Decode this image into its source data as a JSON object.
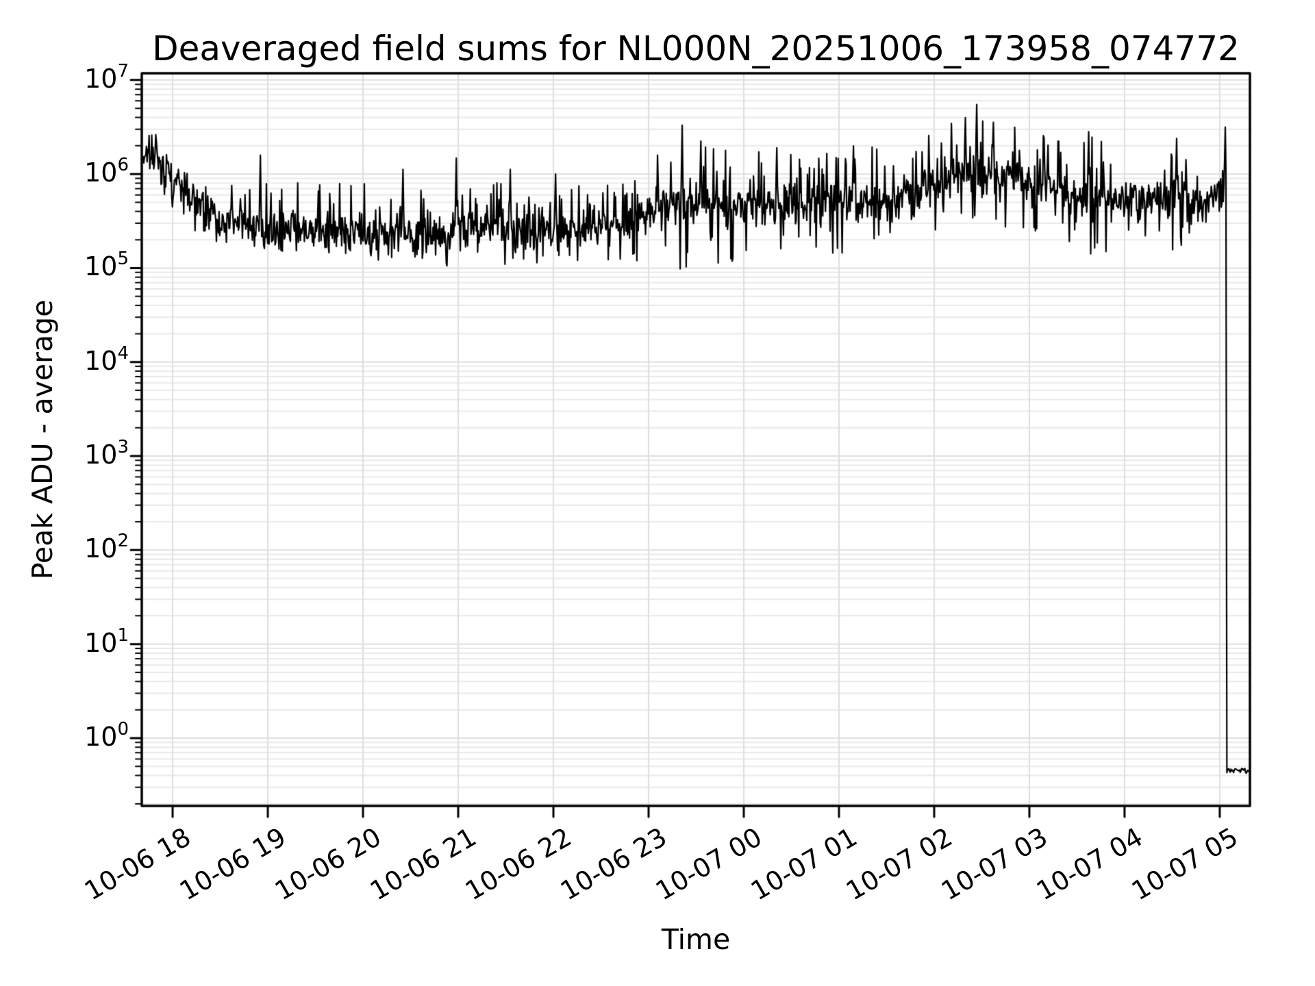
{
  "figure": {
    "background": "#ffffff"
  },
  "chart_data": {
    "type": "line",
    "title": "Deaveraged field sums for NL000N_20251006_173958_074772",
    "xlabel": "Time",
    "ylabel": "Peak ADU - average",
    "grid": "both-major-and-minor",
    "legend": "none",
    "y_scale": "log",
    "line_color": "#000000",
    "grid_major_color": "#dedede",
    "grid_minor_color": "#e9e9e9",
    "axis_color": "#000000",
    "xlim_hours": [
      17.676,
      29.317
    ],
    "ylim": [
      0.19,
      11800000
    ],
    "x_ticks": [
      {
        "label": "10-06 18",
        "hour": 18
      },
      {
        "label": "10-06 19",
        "hour": 19
      },
      {
        "label": "10-06 20",
        "hour": 20
      },
      {
        "label": "10-06 21",
        "hour": 21
      },
      {
        "label": "10-06 22",
        "hour": 22
      },
      {
        "label": "10-06 23",
        "hour": 23
      },
      {
        "label": "10-07 00",
        "hour": 24
      },
      {
        "label": "10-07 01",
        "hour": 25
      },
      {
        "label": "10-07 02",
        "hour": 26
      },
      {
        "label": "10-07 03",
        "hour": 27
      },
      {
        "label": "10-07 04",
        "hour": 28
      },
      {
        "label": "10-07 05",
        "hour": 29
      }
    ],
    "y_ticks": [
      {
        "base": "10",
        "exp": "7"
      },
      {
        "base": "10",
        "exp": "6"
      },
      {
        "base": "10",
        "exp": "5"
      },
      {
        "base": "10",
        "exp": "4"
      },
      {
        "base": "10",
        "exp": "3"
      },
      {
        "base": "10",
        "exp": "2"
      },
      {
        "base": "10",
        "exp": "1"
      },
      {
        "base": "10",
        "exp": "0"
      }
    ],
    "series": {
      "name": "deaveraged field sum",
      "unit": "ADU",
      "start_value": 1700000,
      "baseline_value": 270000,
      "peak_value": 5500000,
      "end_flat_value": 0.45,
      "envelope_log10": [
        [
          17.676,
          6.05,
          6.22,
          6.36
        ],
        [
          17.83,
          6.0,
          6.2,
          6.38
        ],
        [
          17.95,
          5.75,
          5.98,
          6.18
        ],
        [
          18.15,
          5.5,
          5.75,
          6.02
        ],
        [
          18.45,
          5.28,
          5.52,
          5.86
        ],
        [
          18.8,
          5.14,
          5.44,
          5.92
        ],
        [
          19.6,
          5.08,
          5.41,
          5.9
        ],
        [
          20.6,
          5.02,
          5.4,
          5.9
        ],
        [
          21.6,
          5.02,
          5.41,
          5.92
        ],
        [
          22.4,
          5.08,
          5.44,
          5.9
        ],
        [
          22.85,
          5.05,
          5.53,
          6.12
        ],
        [
          23.2,
          4.96,
          5.66,
          6.38
        ],
        [
          23.7,
          5.05,
          5.68,
          6.28
        ],
        [
          24.3,
          5.12,
          5.66,
          6.26
        ],
        [
          25.0,
          5.15,
          5.7,
          6.3
        ],
        [
          25.6,
          5.22,
          5.74,
          6.28
        ],
        [
          26.0,
          5.35,
          5.88,
          6.45
        ],
        [
          26.3,
          5.45,
          6.02,
          6.62
        ],
        [
          26.6,
          5.45,
          6.04,
          6.58
        ],
        [
          26.95,
          5.32,
          5.95,
          6.48
        ],
        [
          27.35,
          5.15,
          5.8,
          6.4
        ],
        [
          27.85,
          5.08,
          5.74,
          6.4
        ],
        [
          28.45,
          5.1,
          5.72,
          6.3
        ],
        [
          28.95,
          5.15,
          5.75,
          6.32
        ],
        [
          29.068,
          5.2,
          5.8,
          6.4
        ]
      ],
      "spikes_log10": [
        [
          18.92,
          6.2
        ],
        [
          20.42,
          6.05
        ],
        [
          20.98,
          6.17
        ],
        [
          21.55,
          6.05
        ],
        [
          22.02,
          6.0
        ],
        [
          23.35,
          6.52
        ],
        [
          23.55,
          6.35
        ],
        [
          24.35,
          6.28
        ],
        [
          25.15,
          6.3
        ],
        [
          26.33,
          6.6
        ],
        [
          26.45,
          6.74
        ],
        [
          26.62,
          6.55
        ],
        [
          27.62,
          6.45
        ],
        [
          28.55,
          6.38
        ],
        [
          29.055,
          6.5
        ]
      ],
      "tail": {
        "start_hour": 29.075,
        "end_hour": 29.317,
        "value": 0.45
      }
    },
    "synthesis": {
      "seed": 13,
      "step_hours": 0.007,
      "jitter_sigma": 0.11,
      "up_prob": 0.08,
      "down_prob": 0.08,
      "excursion_min_frac": 0.35
    }
  }
}
